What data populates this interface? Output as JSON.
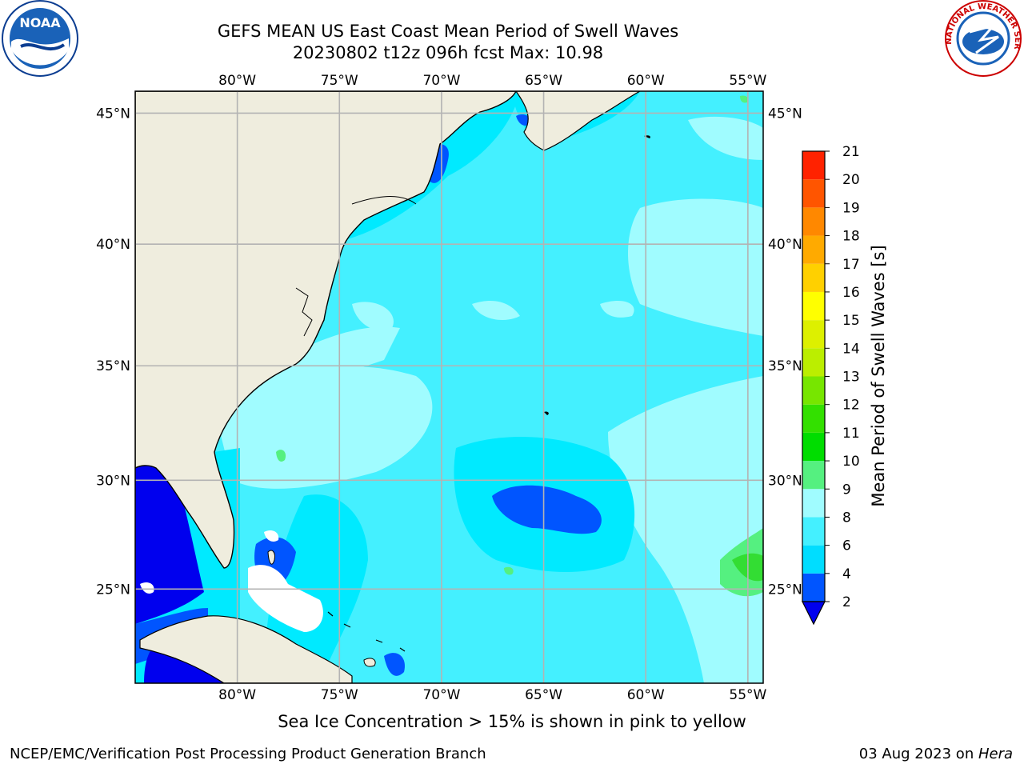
{
  "title": {
    "line1": "GEFS MEAN US East Coast Mean Period of Swell Waves",
    "line2": "20230802 t12z 096h fcst   Max: 10.98"
  },
  "map": {
    "lon_labels": [
      "80°W",
      "75°W",
      "70°W",
      "65°W",
      "60°W",
      "55°W"
    ],
    "lat_labels": [
      "45°N",
      "40°N",
      "35°N",
      "30°N",
      "25°N"
    ],
    "lons": [
      -80,
      -75,
      -70,
      -65,
      -60,
      -55
    ],
    "lats": [
      45,
      40,
      35,
      30,
      25
    ],
    "extent": {
      "lon_min": -85,
      "lon_max": -54.25,
      "lat_min": 20.5,
      "lat_max": 45.8
    },
    "land_color": "#efedde",
    "grid_color": "#b3b3b3"
  },
  "colorbar": {
    "label": "Mean Period of Swell Waves [s]",
    "levels": [
      "2",
      "4",
      "6",
      "8",
      "9",
      "10",
      "11",
      "12",
      "13",
      "14",
      "15",
      "16",
      "17",
      "18",
      "19",
      "20",
      "21"
    ],
    "colors": [
      "#0055ff",
      "#00ddff",
      "#44f0ff",
      "#a0fcff",
      "#55f080",
      "#00dd00",
      "#33e000",
      "#77e600",
      "#bbee00",
      "#ddf000",
      "#ffff00",
      "#ffd000",
      "#ffaa00",
      "#ff8800",
      "#ff5500",
      "#ff2200"
    ],
    "extend_color": "#0000ee"
  },
  "note": "Sea Ice Concentration > 15% is shown in pink to yellow",
  "footer": {
    "left": "NCEP/EMC/Verification Post Processing Product Generation Branch",
    "date": "03 Aug 2023 on ",
    "machine": "Hera"
  },
  "logos": {
    "noaa": "NOAA",
    "nws": "NATIONAL WEATHER SERVICE"
  }
}
